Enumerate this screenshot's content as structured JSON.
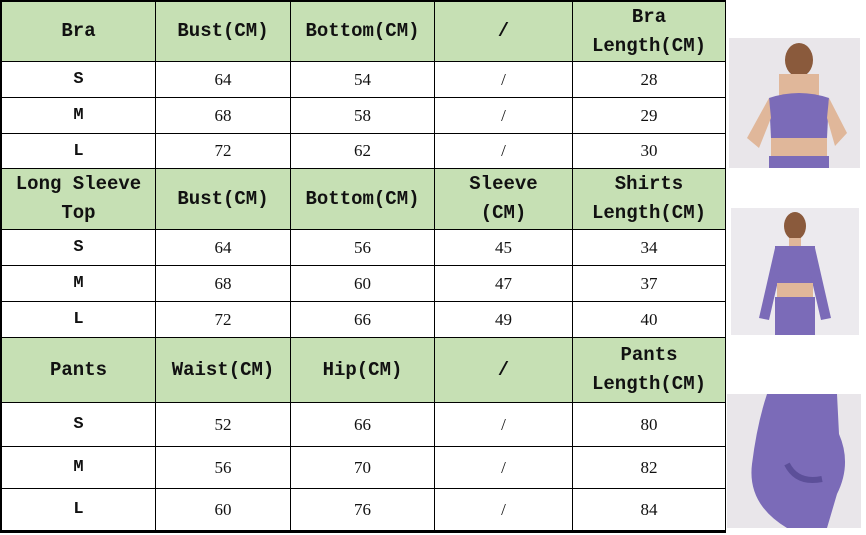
{
  "sections": [
    {
      "headers": [
        "Bra",
        "Bust(CM)",
        "Bottom(CM)",
        "/",
        "Bra\nLength(CM)"
      ],
      "rows": [
        [
          "S",
          "64",
          "54",
          "/",
          "28"
        ],
        [
          "M",
          "68",
          "58",
          "/",
          "29"
        ],
        [
          "L",
          "72",
          "62",
          "/",
          "30"
        ]
      ],
      "photo": "purple-sports-bra-model"
    },
    {
      "headers": [
        "Long Sleeve\nTop",
        "Bust(CM)",
        "Bottom(CM)",
        "Sleeve\n(CM)",
        "Shirts\nLength(CM)"
      ],
      "rows": [
        [
          "S",
          "64",
          "56",
          "45",
          "34"
        ],
        [
          "M",
          "68",
          "60",
          "47",
          "37"
        ],
        [
          "L",
          "72",
          "66",
          "49",
          "40"
        ]
      ],
      "photo": "purple-long-sleeve-top-model"
    },
    {
      "headers": [
        "Pants",
        "Waist(CM)",
        "Hip(CM)",
        "/",
        "Pants\nLength(CM)"
      ],
      "rows": [
        [
          "S",
          "52",
          "66",
          "/",
          "80"
        ],
        [
          "M",
          "56",
          "70",
          "/",
          "82"
        ],
        [
          "L",
          "60",
          "76",
          "/",
          "84"
        ]
      ],
      "photo": "purple-leggings-model"
    }
  ],
  "colors": {
    "header_bg": "#c6e0b4",
    "garment": "#7b6bb8"
  }
}
